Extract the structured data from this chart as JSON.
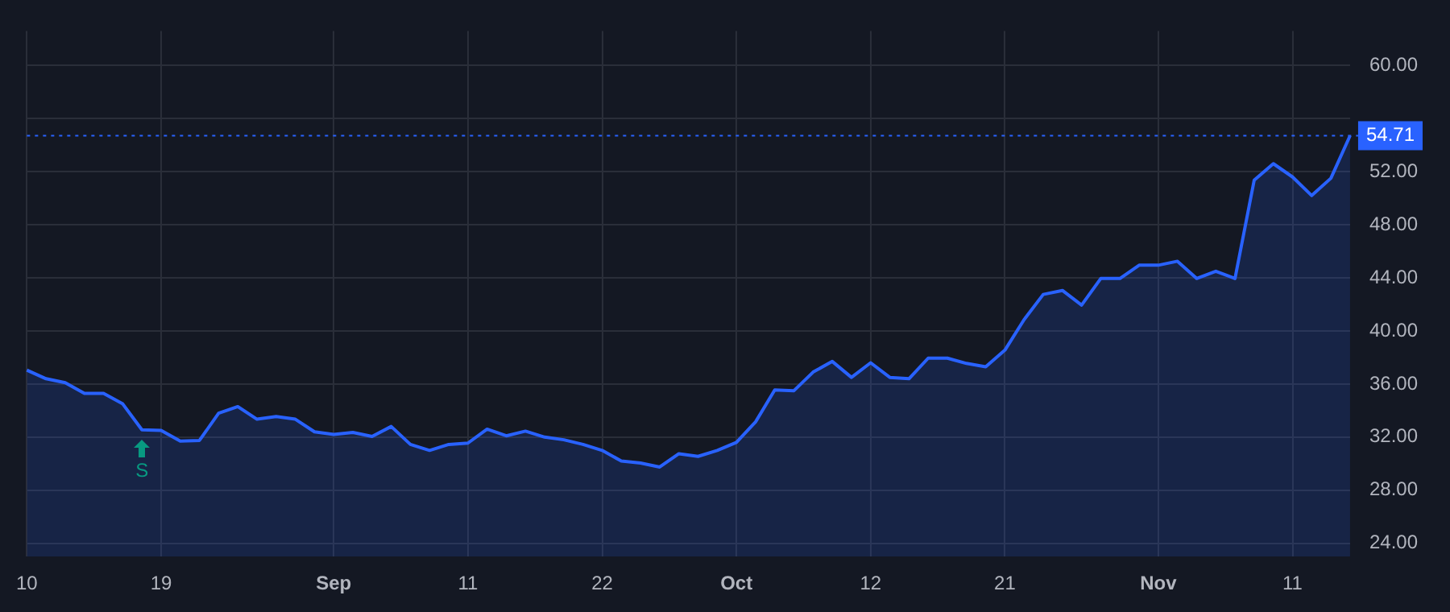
{
  "chart_data": {
    "type": "area",
    "categories": [
      "10",
      null,
      null,
      null,
      null,
      null,
      null,
      "19",
      null,
      null,
      null,
      null,
      null,
      null,
      null,
      null,
      "Sep",
      null,
      null,
      null,
      null,
      null,
      null,
      "11",
      null,
      null,
      null,
      null,
      null,
      null,
      "22",
      null,
      null,
      null,
      null,
      null,
      null,
      "Oct",
      null,
      null,
      null,
      null,
      null,
      null,
      "12",
      null,
      null,
      null,
      null,
      null,
      null,
      "21",
      null,
      null,
      null,
      null,
      null,
      null,
      null,
      "Nov",
      null,
      null,
      null,
      null,
      null,
      null,
      "11",
      null,
      null,
      null
    ],
    "series": [
      {
        "color": "#2962ff",
        "values": [
          37.05,
          36.4,
          36.1,
          35.3,
          35.3,
          34.5,
          32.55,
          32.5,
          31.7,
          31.75,
          33.8,
          34.3,
          33.35,
          33.55,
          33.35,
          32.4,
          32.2,
          32.35,
          32.05,
          32.8,
          31.45,
          31.0,
          31.45,
          31.55,
          32.6,
          32.1,
          32.45,
          32.0,
          31.8,
          31.45,
          31.0,
          30.2,
          30.05,
          29.75,
          30.75,
          30.55,
          31.0,
          31.6,
          33.15,
          35.55,
          35.5,
          36.9,
          37.7,
          36.5,
          37.6,
          36.5,
          36.4,
          37.95,
          37.95,
          37.55,
          37.3,
          38.55,
          40.85,
          42.75,
          43.05,
          41.95,
          43.95,
          43.95,
          44.95,
          44.95,
          45.25,
          43.95,
          44.5,
          43.95,
          51.35,
          52.6,
          51.6,
          50.2,
          51.5,
          54.71
        ]
      }
    ],
    "ylim": [
      23,
      62.6
    ],
    "yticks": [
      {
        "value": 24,
        "label": "24.00"
      },
      {
        "value": 28,
        "label": "28.00"
      },
      {
        "value": 32,
        "label": "32.00"
      },
      {
        "value": 36,
        "label": "36.00"
      },
      {
        "value": 40,
        "label": "40.00"
      },
      {
        "value": 44,
        "label": "44.00"
      },
      {
        "value": 48,
        "label": "48.00"
      },
      {
        "value": 52,
        "label": "52.00"
      },
      {
        "value": 56,
        "label": null
      },
      {
        "value": 60,
        "label": "60.00"
      }
    ],
    "grid": true,
    "legend": false,
    "ref_lines": [
      {
        "axis": "y",
        "value": 54.71,
        "label": "54.71",
        "color": "#2962ff",
        "line_style": "dotted"
      }
    ],
    "annotations": [
      "S"
    ]
  }
}
